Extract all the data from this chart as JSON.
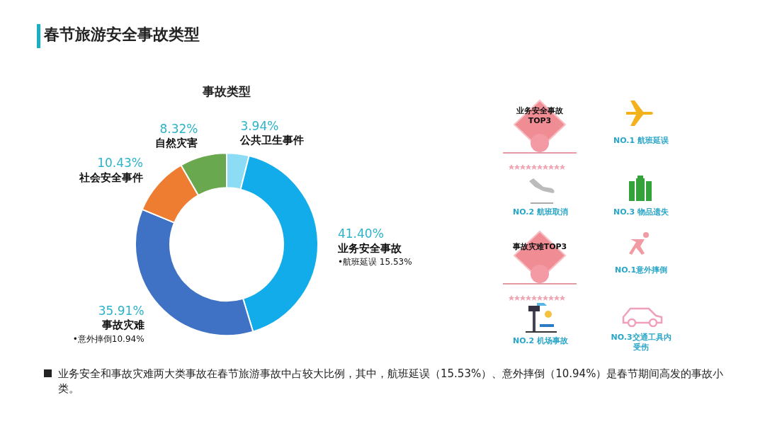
{
  "chart_data": {
    "type": "donut",
    "title": "春节旅游安全事故类型",
    "subtitle": "事故类型",
    "categories": [
      "公共卫生事件",
      "业务安全事故",
      "事故灾难",
      "社会安全事件",
      "自然灾害"
    ],
    "values": [
      3.94,
      41.4,
      35.91,
      10.43,
      8.32
    ],
    "colors": [
      "#8ddcf6",
      "#12acea",
      "#3f72c4",
      "#ee7d31",
      "#6aa84f"
    ],
    "value_labels": [
      "3.94%",
      "41.40%",
      "35.91%",
      "10.43%",
      "8.32%"
    ],
    "legend": false,
    "annotations": [
      "•航班延误 15.53%",
      "•意外摔倒10.94%",
      "业务安全事故TOP3",
      "NO.1 航班延误",
      "NO.2 航班取消",
      "NO.3 物品遗失",
      "事故灾难TOP3",
      "NO.1意外摔倒",
      "NO.2 机场事故",
      "NO.3交通工具内受伤",
      "业务安全和事故灾难两大类事故在春节旅游事故中占较大比例，其中，航班延误（15.53%）、意外摔倒（10.94%）是春节期间高发的事故小类。"
    ]
  }
}
